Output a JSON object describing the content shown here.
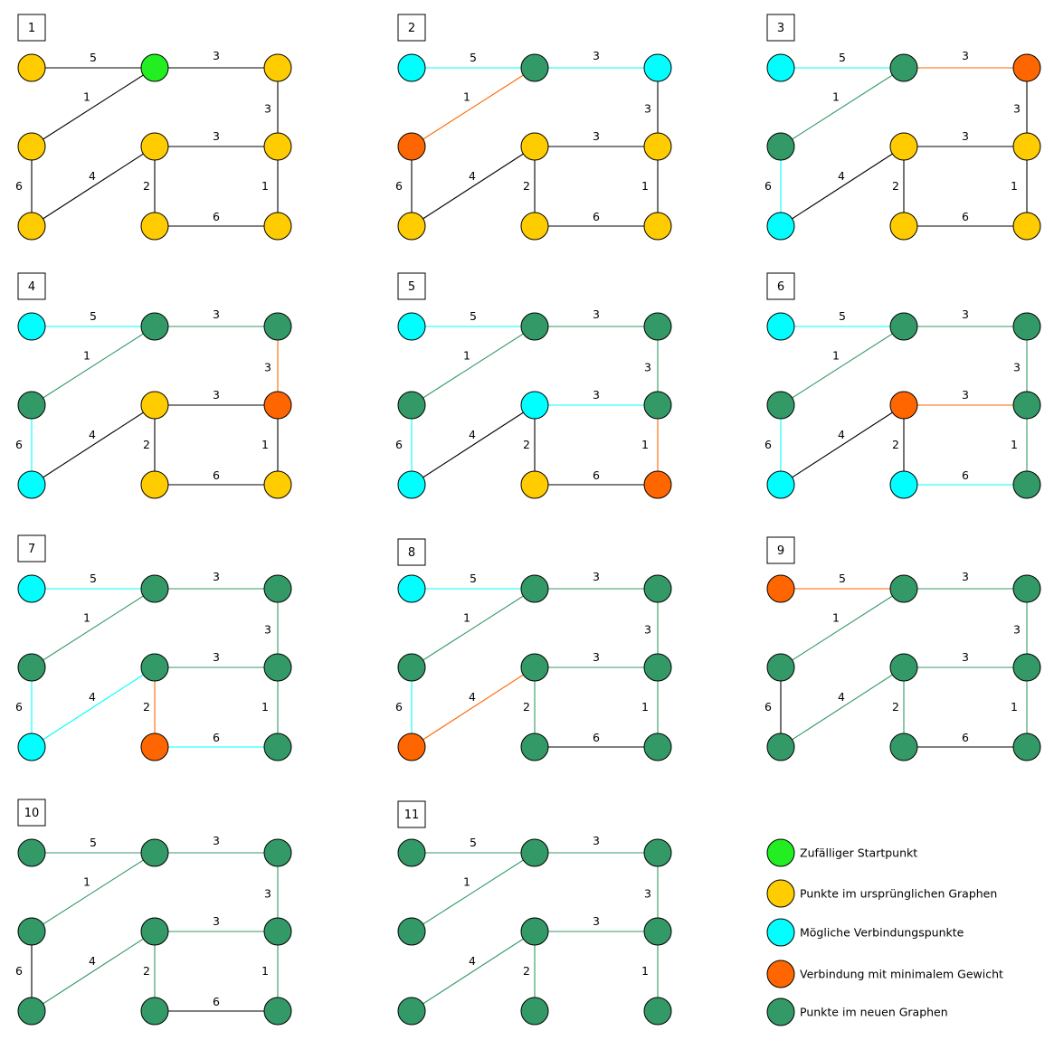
{
  "colors": {
    "start": "#22ee22",
    "original": "#ffcc00",
    "candidate": "#00ffff",
    "minimal": "#ff6600",
    "tree": "#339966",
    "edge_default": "#000000"
  },
  "nodes": [
    "A",
    "B",
    "C",
    "D",
    "E",
    "F",
    "G",
    "H",
    "I"
  ],
  "edges": [
    {
      "id": "A-B",
      "label": "5"
    },
    {
      "id": "B-C",
      "label": "3"
    },
    {
      "id": "B-D",
      "label": "1"
    },
    {
      "id": "C-F",
      "label": "3"
    },
    {
      "id": "E-F",
      "label": "3"
    },
    {
      "id": "D-G",
      "label": "6"
    },
    {
      "id": "E-G",
      "label": "4"
    },
    {
      "id": "E-H",
      "label": "2"
    },
    {
      "id": "F-I",
      "label": "1"
    },
    {
      "id": "H-I",
      "label": "6"
    }
  ],
  "steps": [
    {
      "label": "1",
      "nodes": {
        "A": "original",
        "B": "start",
        "C": "original",
        "D": "original",
        "E": "original",
        "F": "original",
        "G": "original",
        "H": "original",
        "I": "original"
      },
      "edges": {}
    },
    {
      "label": "2",
      "nodes": {
        "A": "candidate",
        "B": "tree",
        "C": "candidate",
        "D": "minimal",
        "E": "original",
        "F": "original",
        "G": "original",
        "H": "original",
        "I": "original"
      },
      "edges": {
        "A-B": "candidate",
        "B-C": "candidate",
        "B-D": "minimal"
      }
    },
    {
      "label": "3",
      "nodes": {
        "A": "candidate",
        "B": "tree",
        "C": "minimal",
        "D": "tree",
        "E": "original",
        "F": "original",
        "G": "candidate",
        "H": "original",
        "I": "original"
      },
      "edges": {
        "A-B": "candidate",
        "B-C": "minimal",
        "B-D": "tree",
        "D-G": "candidate"
      }
    },
    {
      "label": "4",
      "nodes": {
        "A": "candidate",
        "B": "tree",
        "C": "tree",
        "D": "tree",
        "E": "original",
        "F": "minimal",
        "G": "candidate",
        "H": "original",
        "I": "original"
      },
      "edges": {
        "A-B": "candidate",
        "B-C": "tree",
        "B-D": "tree",
        "D-G": "candidate",
        "C-F": "minimal"
      }
    },
    {
      "label": "5",
      "nodes": {
        "A": "candidate",
        "B": "tree",
        "C": "tree",
        "D": "tree",
        "E": "candidate",
        "F": "tree",
        "G": "candidate",
        "H": "original",
        "I": "minimal"
      },
      "edges": {
        "A-B": "candidate",
        "B-C": "tree",
        "B-D": "tree",
        "D-G": "candidate",
        "C-F": "tree",
        "E-F": "candidate",
        "F-I": "minimal"
      }
    },
    {
      "label": "6",
      "nodes": {
        "A": "candidate",
        "B": "tree",
        "C": "tree",
        "D": "tree",
        "E": "minimal",
        "F": "tree",
        "G": "candidate",
        "H": "candidate",
        "I": "tree"
      },
      "edges": {
        "A-B": "candidate",
        "B-C": "tree",
        "B-D": "tree",
        "D-G": "candidate",
        "C-F": "tree",
        "E-F": "minimal",
        "F-I": "tree",
        "H-I": "candidate"
      }
    },
    {
      "label": "7",
      "nodes": {
        "A": "candidate",
        "B": "tree",
        "C": "tree",
        "D": "tree",
        "E": "tree",
        "F": "tree",
        "G": "candidate",
        "H": "minimal",
        "I": "tree"
      },
      "edges": {
        "A-B": "candidate",
        "B-C": "tree",
        "B-D": "tree",
        "D-G": "candidate",
        "C-F": "tree",
        "E-F": "tree",
        "F-I": "tree",
        "H-I": "candidate",
        "E-G": "candidate",
        "E-H": "minimal"
      }
    },
    {
      "label": "8",
      "nodes": {
        "A": "candidate",
        "B": "tree",
        "C": "tree",
        "D": "tree",
        "E": "tree",
        "F": "tree",
        "G": "minimal",
        "H": "tree",
        "I": "tree"
      },
      "edges": {
        "A-B": "candidate",
        "B-C": "tree",
        "B-D": "tree",
        "D-G": "candidate",
        "C-F": "tree",
        "E-F": "tree",
        "F-I": "tree",
        "E-G": "minimal",
        "E-H": "tree"
      }
    },
    {
      "label": "9",
      "nodes": {
        "A": "minimal",
        "B": "tree",
        "C": "tree",
        "D": "tree",
        "E": "tree",
        "F": "tree",
        "G": "tree",
        "H": "tree",
        "I": "tree"
      },
      "edges": {
        "A-B": "minimal",
        "B-C": "tree",
        "B-D": "tree",
        "C-F": "tree",
        "E-F": "tree",
        "F-I": "tree",
        "E-G": "tree",
        "E-H": "tree"
      }
    },
    {
      "label": "10",
      "nodes": {
        "A": "tree",
        "B": "tree",
        "C": "tree",
        "D": "tree",
        "E": "tree",
        "F": "tree",
        "G": "tree",
        "H": "tree",
        "I": "tree"
      },
      "edges": {
        "A-B": "tree",
        "B-C": "tree",
        "B-D": "tree",
        "C-F": "tree",
        "E-F": "tree",
        "F-I": "tree",
        "E-G": "tree",
        "E-H": "tree"
      }
    },
    {
      "label": "11",
      "nodes": {
        "A": "tree",
        "B": "tree",
        "C": "tree",
        "D": "tree",
        "E": "tree",
        "F": "tree",
        "G": "tree",
        "H": "tree",
        "I": "tree"
      },
      "edges": {
        "A-B": "tree",
        "B-C": "tree",
        "B-D": "tree",
        "C-F": "tree",
        "E-F": "tree",
        "F-I": "tree",
        "E-G": "tree",
        "E-H": "tree"
      },
      "hidden_edges": [
        "D-G",
        "H-I"
      ]
    }
  ],
  "legend": [
    {
      "state": "start",
      "label": "Zufälliger Startpunkt"
    },
    {
      "state": "original",
      "label": "Punkte im ursprünglichen Graphen"
    },
    {
      "state": "candidate",
      "label": "Mögliche Verbindungspunkte"
    },
    {
      "state": "minimal",
      "label": "Verbindung mit minimalem Gewicht"
    },
    {
      "state": "tree",
      "label": "Punkte im neuen Graphen"
    }
  ]
}
